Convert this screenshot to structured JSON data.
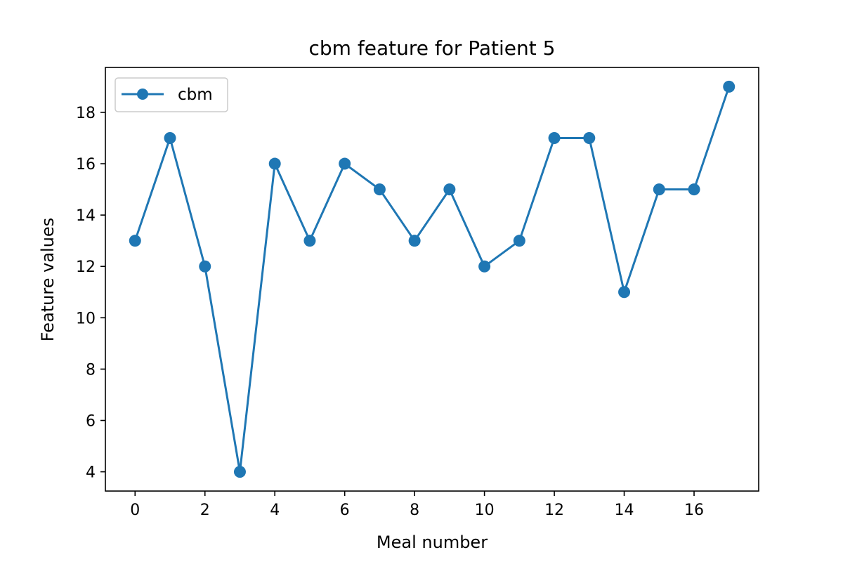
{
  "chart_data": {
    "type": "line",
    "title": "cbm feature for Patient 5",
    "xlabel": "Meal number",
    "ylabel": "Feature values",
    "xlim": [
      -0.85,
      17.85
    ],
    "ylim": [
      3.25,
      19.75
    ],
    "xticks": [
      "0",
      "2",
      "4",
      "6",
      "8",
      "10",
      "12",
      "14",
      "16"
    ],
    "yticks": [
      "4",
      "6",
      "8",
      "10",
      "12",
      "14",
      "16",
      "18"
    ],
    "grid": false,
    "legend_position": "top-left",
    "x": [
      0,
      1,
      2,
      3,
      4,
      5,
      6,
      7,
      8,
      9,
      10,
      11,
      12,
      13,
      14,
      15,
      16,
      17
    ],
    "series": [
      {
        "name": "cbm",
        "color": "#1f77b4",
        "marker": "circle",
        "values": [
          13,
          17,
          12,
          4,
          16,
          13,
          16,
          15,
          13,
          15,
          12,
          13,
          17,
          17,
          11,
          15,
          15,
          19
        ]
      }
    ]
  }
}
